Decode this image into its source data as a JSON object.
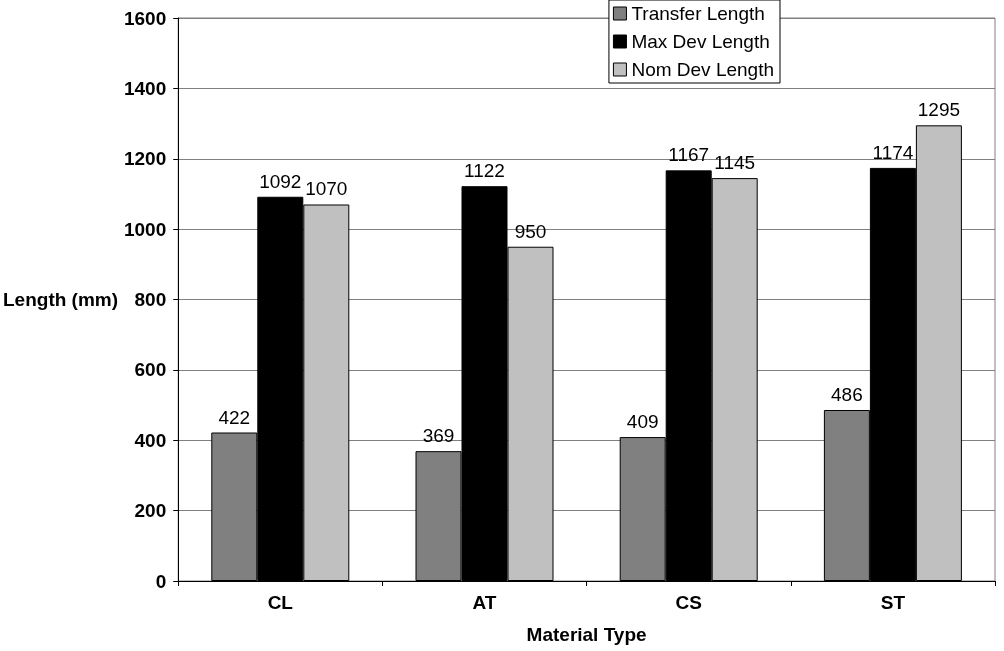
{
  "chart_data": {
    "type": "bar",
    "xlabel": "Material Type",
    "ylabel": "Length (mm)",
    "categories": [
      "CL",
      "AT",
      "CS",
      "ST"
    ],
    "series": [
      {
        "name": "Transfer Length",
        "color": "#808080",
        "values": [
          422,
          369,
          409,
          486
        ]
      },
      {
        "name": "Max Dev Length",
        "color": "#000000",
        "values": [
          1092,
          1122,
          1167,
          1174
        ]
      },
      {
        "name": "Nom Dev Length",
        "color": "#c0c0c0",
        "values": [
          1070,
          950,
          1145,
          1295
        ]
      }
    ],
    "ylim": [
      0,
      1600
    ],
    "yticks": [
      0,
      200,
      400,
      600,
      800,
      1000,
      1200,
      1400,
      1600
    ],
    "grid": "y",
    "legend": "top right",
    "data_labels": true
  }
}
